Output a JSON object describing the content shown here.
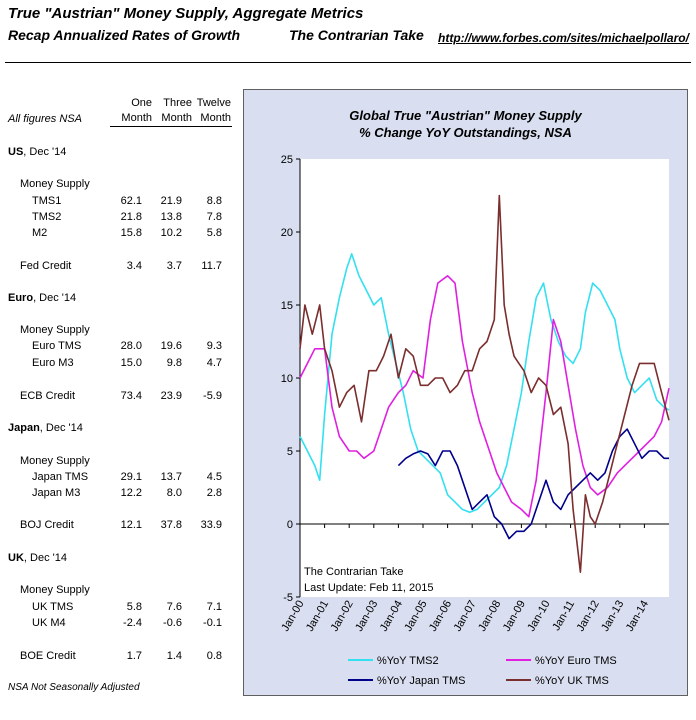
{
  "header": {
    "title": "True \"Austrian\" Money Supply, Aggregate Metrics",
    "subtitle": "Recap Annualized Rates of Growth",
    "brand": "The Contrarian Take",
    "url": "http://www.forbes.com/sites/michaelpollaro/"
  },
  "table": {
    "note": "All figures NSA",
    "col_headers": [
      [
        "One",
        "Month"
      ],
      [
        "Three",
        "Month"
      ],
      [
        "Twelve",
        "Month"
      ]
    ],
    "sections": [
      {
        "title": "US",
        "date": ", Dec '14",
        "group": "Money Supply",
        "rows": [
          {
            "label": "TMS1",
            "v": [
              "62.1",
              "21.9",
              "8.8"
            ]
          },
          {
            "label": "TMS2",
            "v": [
              "21.8",
              "13.8",
              "7.8"
            ]
          },
          {
            "label": "M2",
            "v": [
              "15.8",
              "10.2",
              "5.8"
            ]
          }
        ],
        "credit": {
          "label": "Fed Credit",
          "v": [
            "3.4",
            "3.7",
            "11.7"
          ]
        }
      },
      {
        "title": "Euro",
        "date": ", Dec '14",
        "group": "Money Supply",
        "rows": [
          {
            "label": "Euro TMS",
            "v": [
              "28.0",
              "19.6",
              "9.3"
            ]
          },
          {
            "label": "Euro M3",
            "v": [
              "15.0",
              "9.8",
              "4.7"
            ]
          }
        ],
        "credit": {
          "label": "ECB Credit",
          "v": [
            "73.4",
            "23.9",
            "-5.9"
          ]
        }
      },
      {
        "title": "Japan",
        "date": ", Dec '14",
        "group": "Money Supply",
        "rows": [
          {
            "label": "Japan TMS",
            "v": [
              "29.1",
              "13.7",
              "4.5"
            ]
          },
          {
            "label": "Japan M3",
            "v": [
              "12.2",
              "8.0",
              "2.8"
            ]
          }
        ],
        "credit": {
          "label": "BOJ Credit",
          "v": [
            "12.1",
            "37.8",
            "33.9"
          ]
        }
      },
      {
        "title": "UK",
        "date": ", Dec '14",
        "group": "Money Supply",
        "rows": [
          {
            "label": "UK TMS",
            "v": [
              "5.8",
              "7.6",
              "7.1"
            ]
          },
          {
            "label": "UK M4",
            "v": [
              "-2.4",
              "-0.6",
              "-0.1"
            ]
          }
        ],
        "credit": {
          "label": "BOE Credit",
          "v": [
            "1.7",
            "1.4",
            "0.8"
          ]
        }
      }
    ],
    "footnote": "NSA  Not Seasonally Adjusted"
  },
  "chart_data": {
    "type": "line",
    "title": "Global True \"Austrian\" Money Supply",
    "subtitle": "% Change YoY Outstandings, NSA",
    "credit": "The Contrarian Take",
    "last_update": "Last Update: Feb 11, 2015",
    "xlabel": "",
    "ylabel": "",
    "xlim": [
      2000.0,
      2015.0
    ],
    "ylim": [
      -5,
      25
    ],
    "yticks": [
      -5,
      0,
      5,
      10,
      15,
      20,
      25
    ],
    "xticks": [
      "Jan-00",
      "Jan-01",
      "Jan-02",
      "Jan-03",
      "Jan-04",
      "Jan-05",
      "Jan-06",
      "Jan-07",
      "Jan-08",
      "Jan-09",
      "Jan-10",
      "Jan-11",
      "Jan-12",
      "Jan-13",
      "Jan-14"
    ],
    "series": [
      {
        "name": "%YoY TMS2",
        "color": "#33e0f0",
        "x": [
          2000.0,
          2000.3,
          2000.6,
          2000.8,
          2001.0,
          2001.3,
          2001.6,
          2001.9,
          2002.1,
          2002.4,
          2002.7,
          2003.0,
          2003.3,
          2003.6,
          2003.9,
          2004.2,
          2004.5,
          2004.8,
          2005.1,
          2005.4,
          2005.7,
          2006.0,
          2006.3,
          2006.6,
          2006.9,
          2007.2,
          2007.5,
          2007.8,
          2008.1,
          2008.4,
          2008.7,
          2009.0,
          2009.3,
          2009.6,
          2009.9,
          2010.2,
          2010.5,
          2010.8,
          2011.1,
          2011.4,
          2011.6,
          2011.9,
          2012.2,
          2012.5,
          2012.8,
          2013.0,
          2013.3,
          2013.6,
          2013.9,
          2014.2,
          2014.5,
          2014.8,
          2015.0
        ],
        "y": [
          6.0,
          5.0,
          4.0,
          3.0,
          7.5,
          13.0,
          15.5,
          17.5,
          18.5,
          17.0,
          16.0,
          15.0,
          15.5,
          13.0,
          11.0,
          9.0,
          6.5,
          5.0,
          4.5,
          4.0,
          3.5,
          2.0,
          1.5,
          1.0,
          0.8,
          1.0,
          1.5,
          2.0,
          2.5,
          4.0,
          6.5,
          9.0,
          12.5,
          15.5,
          16.5,
          14.0,
          12.5,
          11.5,
          11.0,
          12.0,
          14.5,
          16.5,
          16.0,
          15.0,
          14.0,
          12.0,
          10.0,
          9.0,
          9.5,
          10.0,
          8.5,
          8.0,
          7.8
        ]
      },
      {
        "name": "%YoY Euro TMS",
        "color": "#e020e0",
        "x": [
          2000.0,
          2000.3,
          2000.6,
          2001.0,
          2001.3,
          2001.6,
          2002.0,
          2002.3,
          2002.6,
          2003.0,
          2003.3,
          2003.6,
          2004.0,
          2004.3,
          2004.6,
          2005.0,
          2005.3,
          2005.6,
          2006.0,
          2006.3,
          2006.6,
          2007.0,
          2007.3,
          2007.6,
          2008.0,
          2008.3,
          2008.6,
          2009.0,
          2009.3,
          2009.6,
          2010.0,
          2010.3,
          2010.6,
          2010.9,
          2011.2,
          2011.5,
          2011.8,
          2012.1,
          2012.5,
          2012.9,
          2013.2,
          2013.5,
          2013.8,
          2014.1,
          2014.4,
          2014.7,
          2015.0
        ],
        "y": [
          10.0,
          11.0,
          12.0,
          12.0,
          8.0,
          6.0,
          5.0,
          5.0,
          4.5,
          5.0,
          6.5,
          8.0,
          9.0,
          9.5,
          10.5,
          10.0,
          14.0,
          16.5,
          17.0,
          16.5,
          12.5,
          9.0,
          7.0,
          5.5,
          3.5,
          2.5,
          1.5,
          1.0,
          0.5,
          3.0,
          9.0,
          14.0,
          12.5,
          9.5,
          6.5,
          4.0,
          2.5,
          2.0,
          2.5,
          3.5,
          4.0,
          4.5,
          5.0,
          5.5,
          6.0,
          7.0,
          9.3
        ]
      },
      {
        "name": "%YoY Japan TMS",
        "color": "#00008b",
        "x": [
          2004.0,
          2004.3,
          2004.6,
          2004.9,
          2005.2,
          2005.5,
          2005.8,
          2006.1,
          2006.4,
          2006.7,
          2007.0,
          2007.3,
          2007.6,
          2007.9,
          2008.2,
          2008.5,
          2008.8,
          2009.1,
          2009.4,
          2009.7,
          2010.0,
          2010.3,
          2010.6,
          2010.9,
          2011.2,
          2011.5,
          2011.8,
          2012.1,
          2012.4,
          2012.7,
          2013.0,
          2013.3,
          2013.6,
          2013.9,
          2014.2,
          2014.5,
          2014.8,
          2015.0
        ],
        "y": [
          4.0,
          4.5,
          4.8,
          5.0,
          4.8,
          4.0,
          5.0,
          5.0,
          4.0,
          2.5,
          1.0,
          1.5,
          2.0,
          0.5,
          0.0,
          -1.0,
          -0.5,
          -0.5,
          0.0,
          1.5,
          3.0,
          1.5,
          1.0,
          2.0,
          2.5,
          3.0,
          3.5,
          3.0,
          3.5,
          5.0,
          6.0,
          6.5,
          5.5,
          4.5,
          5.0,
          5.0,
          4.5,
          4.5
        ]
      },
      {
        "name": "%YoY UK TMS",
        "color": "#7b2e2e",
        "x": [
          2000.0,
          2000.2,
          2000.5,
          2000.8,
          2001.0,
          2001.3,
          2001.6,
          2001.9,
          2002.2,
          2002.5,
          2002.8,
          2003.1,
          2003.4,
          2003.7,
          2004.0,
          2004.3,
          2004.6,
          2004.9,
          2005.2,
          2005.5,
          2005.8,
          2006.1,
          2006.4,
          2006.7,
          2007.0,
          2007.3,
          2007.6,
          2007.9,
          2008.1,
          2008.3,
          2008.5,
          2008.7,
          2008.9,
          2009.1,
          2009.4,
          2009.7,
          2010.0,
          2010.3,
          2010.6,
          2010.9,
          2011.1,
          2011.4,
          2011.6,
          2011.8,
          2012.0,
          2012.3,
          2012.6,
          2012.9,
          2013.2,
          2013.5,
          2013.8,
          2014.1,
          2014.4,
          2014.7,
          2015.0
        ],
        "y": [
          12.0,
          15.0,
          13.0,
          15.0,
          12.0,
          10.5,
          8.0,
          9.0,
          9.5,
          7.0,
          10.5,
          10.5,
          11.5,
          13.0,
          10.0,
          12.0,
          11.5,
          9.5,
          9.5,
          10.0,
          10.0,
          9.0,
          9.5,
          10.5,
          10.5,
          12.0,
          12.5,
          14.0,
          22.5,
          15.0,
          13.0,
          11.5,
          11.0,
          10.5,
          9.0,
          10.0,
          9.5,
          7.5,
          8.0,
          5.5,
          1.0,
          -3.3,
          2.0,
          0.5,
          0.0,
          1.5,
          3.5,
          5.5,
          7.5,
          9.5,
          11.0,
          11.0,
          11.0,
          9.0,
          7.1
        ]
      }
    ]
  }
}
